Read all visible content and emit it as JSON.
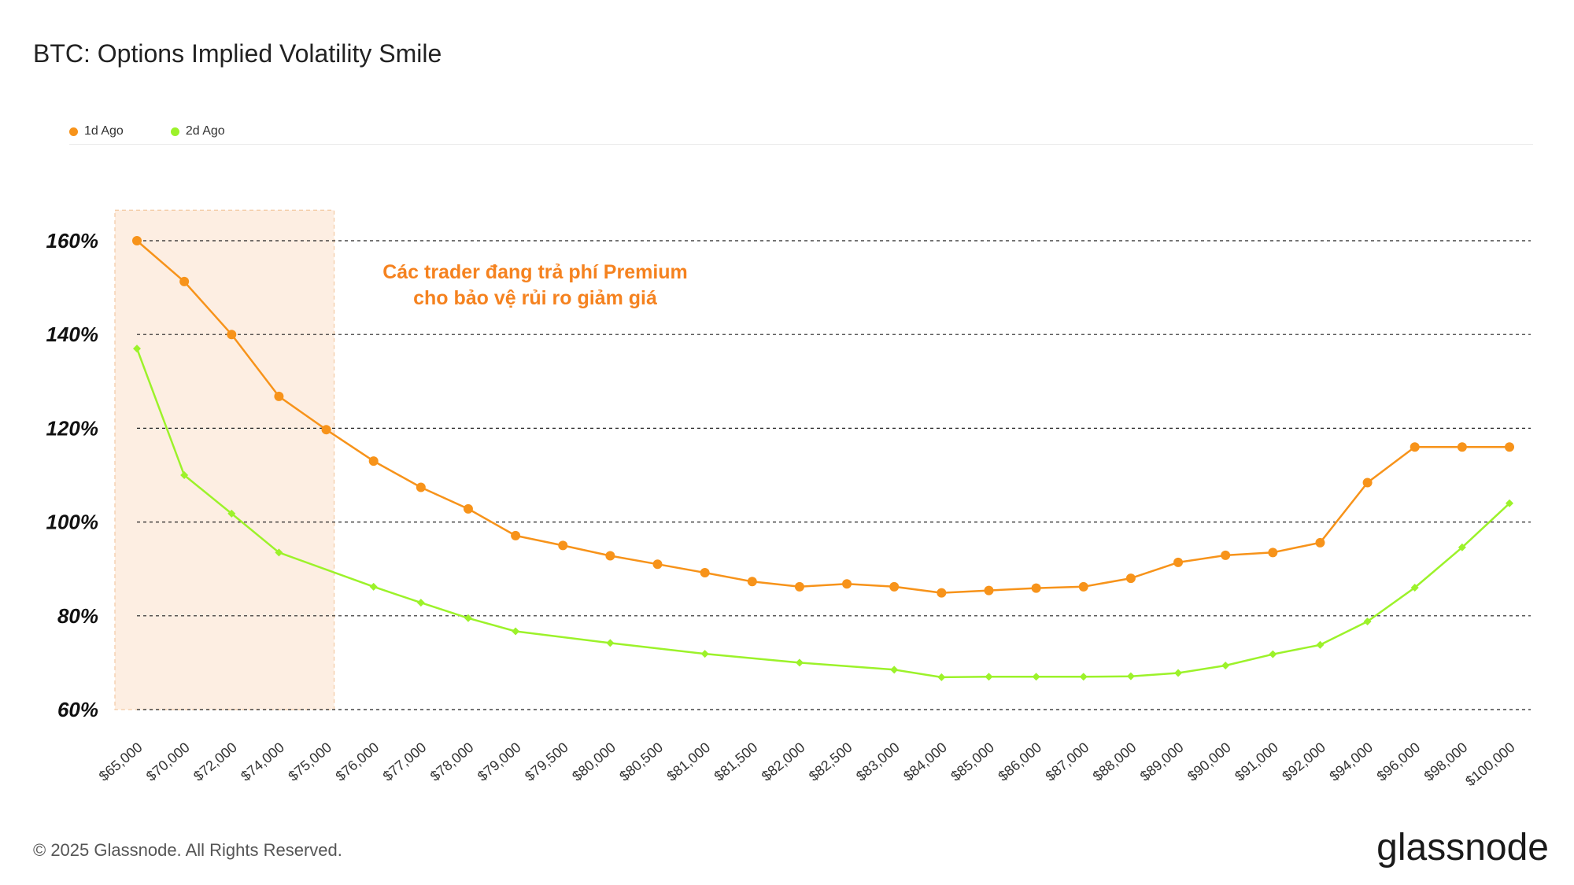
{
  "page": {
    "title": "BTC: Options Implied Volatility Smile",
    "footer": "© 2025 Glassnode. All Rights Reserved.",
    "brand": "glassnode"
  },
  "annotation": {
    "line1": "Các trader đang trả phí Premium",
    "line2": "cho bảo vệ rủi ro giảm giá",
    "color": "#f5821f"
  },
  "legend": [
    {
      "label": "1d Ago",
      "color": "#f7931a"
    },
    {
      "label": "2d Ago",
      "color": "#9cf22a"
    }
  ],
  "colors": {
    "highlight_fill": "#fdeee2",
    "highlight_border": "#f3c9a3",
    "grid": "#222222"
  },
  "chart_data": {
    "type": "line",
    "title": "BTC: Options Implied Volatility Smile",
    "xlabel": "",
    "ylabel": "",
    "categories": [
      "$65,000",
      "$70,000",
      "$72,000",
      "$74,000",
      "$75,000",
      "$76,000",
      "$77,000",
      "$78,000",
      "$79,000",
      "$79,500",
      "$80,000",
      "$80,500",
      "$81,000",
      "$81,500",
      "$82,000",
      "$82,500",
      "$83,000",
      "$84,000",
      "$85,000",
      "$86,000",
      "$87,000",
      "$88,000",
      "$89,000",
      "$90,000",
      "$91,000",
      "$92,000",
      "$94,000",
      "$96,000",
      "$98,000",
      "$100,000"
    ],
    "y_ticks": [
      {
        "value": 60,
        "label": "60%"
      },
      {
        "value": 80,
        "label": "80%"
      },
      {
        "value": 100,
        "label": "100%"
      },
      {
        "value": 120,
        "label": "120%"
      },
      {
        "value": 140,
        "label": "140%"
      },
      {
        "value": 160,
        "label": "160%"
      }
    ],
    "ylim": [
      60,
      166.5
    ],
    "highlight_range": [
      "$65,000",
      "$75,000"
    ],
    "series": [
      {
        "name": "1d Ago",
        "color": "#f7931a",
        "marker": "circle",
        "values": [
          160.0,
          151.3,
          140.0,
          126.8,
          119.7,
          113.0,
          107.4,
          102.8,
          97.1,
          95.0,
          92.8,
          91.0,
          89.2,
          87.3,
          86.2,
          86.8,
          86.2,
          84.9,
          85.4,
          85.9,
          86.2,
          88.0,
          91.4,
          92.9,
          93.5,
          95.6,
          108.4,
          116.0,
          116.0,
          116.0
        ]
      },
      {
        "name": "2d Ago",
        "color": "#9cf22a",
        "marker": "diamond",
        "values": [
          137.0,
          110.0,
          101.8,
          93.5,
          null,
          86.2,
          82.8,
          79.5,
          76.7,
          null,
          74.2,
          null,
          71.9,
          null,
          70.0,
          null,
          68.5,
          66.9,
          67.0,
          67.0,
          67.0,
          67.1,
          67.8,
          69.4,
          71.8,
          73.8,
          78.8,
          86.0,
          94.6,
          104.0
        ]
      }
    ]
  }
}
